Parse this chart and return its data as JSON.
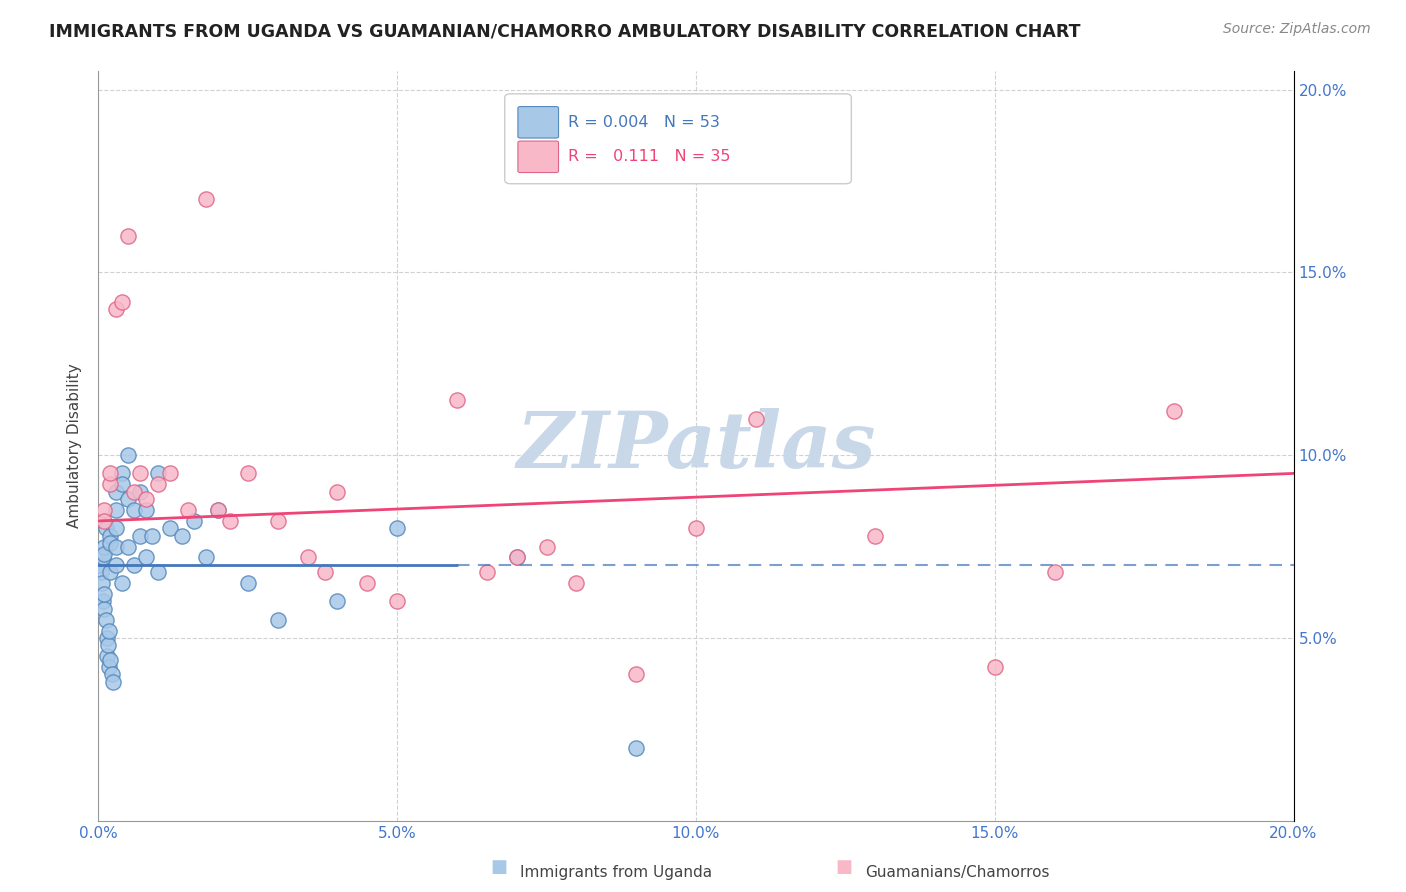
{
  "title": "IMMIGRANTS FROM UGANDA VS GUAMANIAN/CHAMORRO AMBULATORY DISABILITY CORRELATION CHART",
  "source": "Source: ZipAtlas.com",
  "ylabel": "Ambulatory Disability",
  "xmin": 0.0,
  "xmax": 0.2,
  "ymin": 0.0,
  "ymax": 0.205,
  "r_uganda": "0.004",
  "n_uganda": "53",
  "r_guam": "0.111",
  "n_guam": "35",
  "color_uganda": "#a8c8e8",
  "color_guam": "#f8b8c8",
  "edge_uganda": "#5588bb",
  "edge_guam": "#dd6688",
  "trendline_uganda": "#4477bb",
  "trendline_guam": "#ee4477",
  "watermark_color": "#c8d8e8",
  "uganda_x": [
    0.0003,
    0.0005,
    0.0006,
    0.0007,
    0.0008,
    0.0009,
    0.001,
    0.001,
    0.001,
    0.0012,
    0.0013,
    0.0014,
    0.0015,
    0.0016,
    0.0017,
    0.0018,
    0.002,
    0.002,
    0.002,
    0.002,
    0.0022,
    0.0025,
    0.003,
    0.003,
    0.003,
    0.003,
    0.003,
    0.004,
    0.004,
    0.004,
    0.005,
    0.005,
    0.005,
    0.006,
    0.006,
    0.007,
    0.007,
    0.008,
    0.008,
    0.009,
    0.01,
    0.01,
    0.012,
    0.014,
    0.016,
    0.018,
    0.02,
    0.025,
    0.03,
    0.04,
    0.05,
    0.07,
    0.09
  ],
  "uganda_y": [
    0.07,
    0.068,
    0.065,
    0.072,
    0.06,
    0.058,
    0.075,
    0.073,
    0.062,
    0.08,
    0.055,
    0.05,
    0.045,
    0.048,
    0.052,
    0.042,
    0.078,
    0.076,
    0.068,
    0.044,
    0.04,
    0.038,
    0.09,
    0.085,
    0.08,
    0.075,
    0.07,
    0.095,
    0.092,
    0.065,
    0.1,
    0.088,
    0.075,
    0.085,
    0.07,
    0.09,
    0.078,
    0.085,
    0.072,
    0.078,
    0.095,
    0.068,
    0.08,
    0.078,
    0.082,
    0.072,
    0.085,
    0.065,
    0.055,
    0.06,
    0.08,
    0.072,
    0.02
  ],
  "guam_x": [
    0.001,
    0.001,
    0.002,
    0.002,
    0.003,
    0.004,
    0.005,
    0.006,
    0.007,
    0.008,
    0.01,
    0.012,
    0.015,
    0.018,
    0.02,
    0.022,
    0.025,
    0.03,
    0.035,
    0.038,
    0.04,
    0.045,
    0.05,
    0.06,
    0.065,
    0.07,
    0.075,
    0.08,
    0.09,
    0.1,
    0.11,
    0.13,
    0.15,
    0.16,
    0.18
  ],
  "guam_y": [
    0.085,
    0.082,
    0.092,
    0.095,
    0.14,
    0.142,
    0.16,
    0.09,
    0.095,
    0.088,
    0.092,
    0.095,
    0.085,
    0.17,
    0.085,
    0.082,
    0.095,
    0.082,
    0.072,
    0.068,
    0.09,
    0.065,
    0.06,
    0.115,
    0.068,
    0.072,
    0.075,
    0.065,
    0.04,
    0.08,
    0.11,
    0.078,
    0.042,
    0.068,
    0.112
  ],
  "x_ticks": [
    0.0,
    0.05,
    0.1,
    0.15,
    0.2
  ],
  "y_ticks": [
    0.05,
    0.1,
    0.15,
    0.2
  ],
  "legend_r_color_u": "#4477bb",
  "legend_n_color_u": "#4477bb",
  "legend_r_color_g": "#ee4477",
  "legend_n_color_g": "#ee4477"
}
